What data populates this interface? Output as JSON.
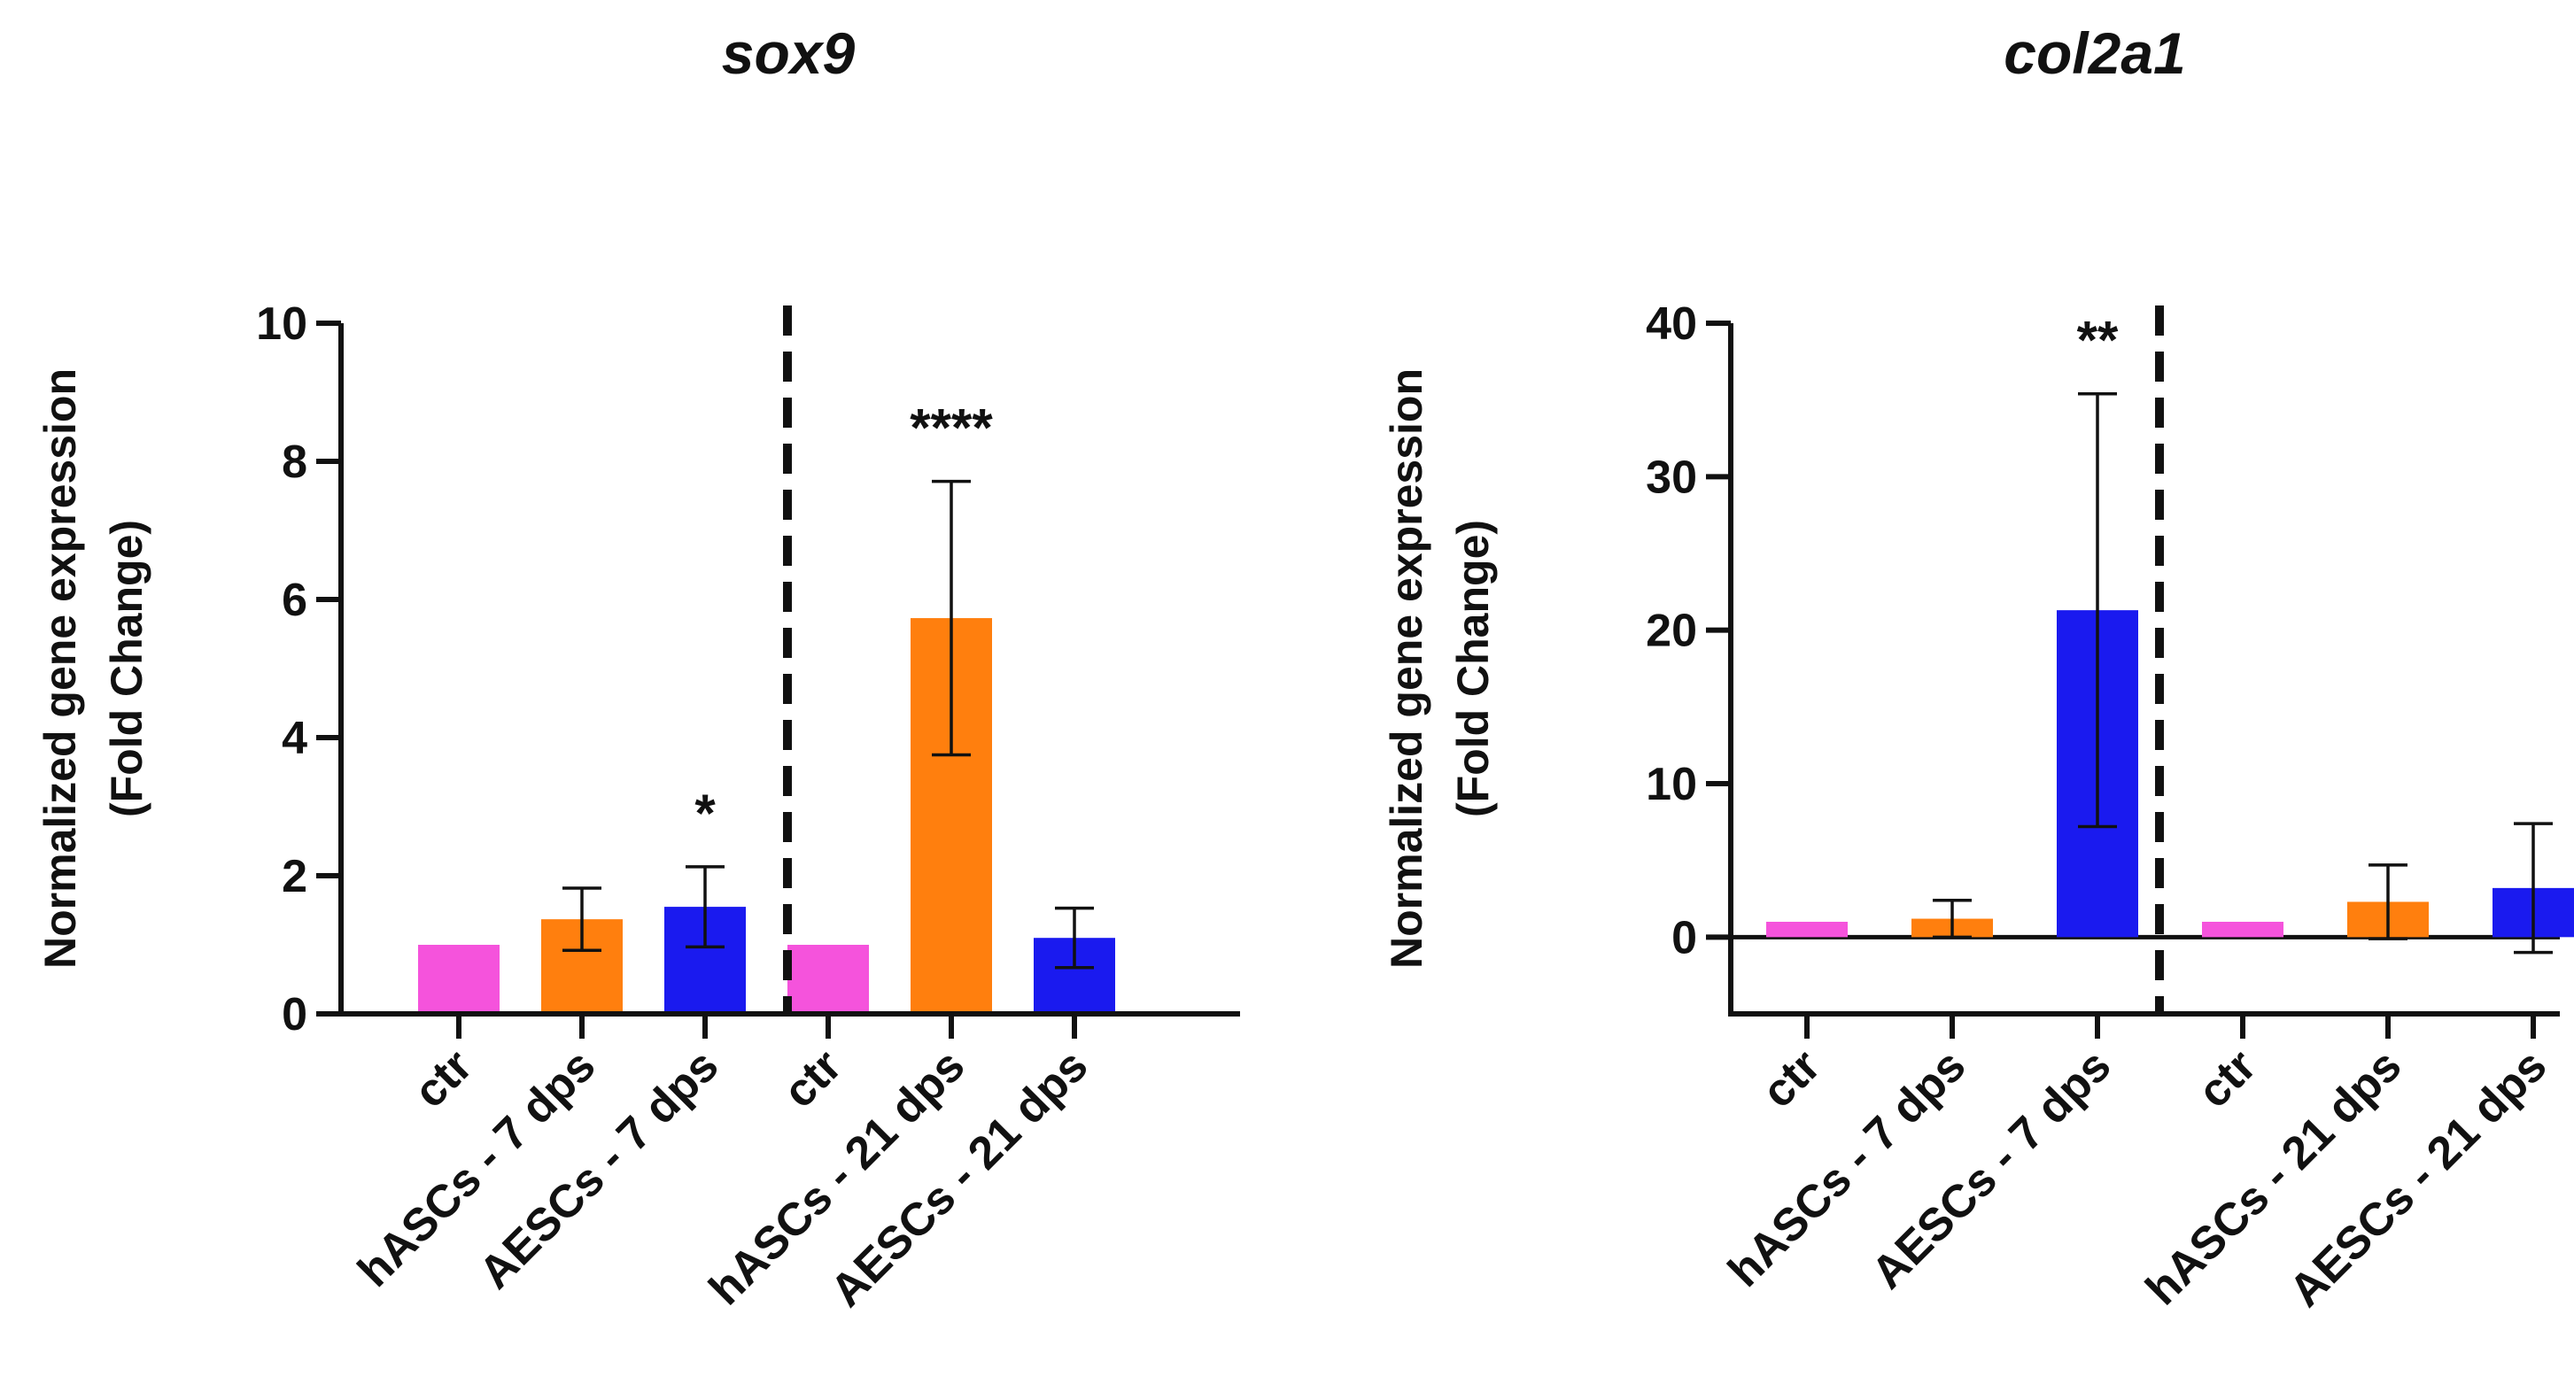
{
  "chart_data": [
    {
      "type": "bar",
      "title": "sox9",
      "ylabel_line1": "Normalized gene expression",
      "ylabel_line2": "(Fold Change)",
      "xlabel": "",
      "ylim": [
        0,
        10
      ],
      "yticks": [
        0,
        2,
        4,
        6,
        8,
        10
      ],
      "categories": [
        "ctr",
        "hASCs - 7 dps",
        "AESCs - 7 dps",
        "ctr",
        "hASCs - 21 dps",
        "AESCs - 21 dps"
      ],
      "values": [
        1.0,
        1.37,
        1.55,
        1.0,
        5.73,
        1.1
      ],
      "errors": [
        0,
        0.45,
        0.58,
        0,
        1.98,
        0.43
      ],
      "colors": [
        "#f553dc",
        "#ff7f0e",
        "#1a1aef",
        "#f553dc",
        "#ff7f0e",
        "#1a1aef"
      ],
      "significance": [
        "",
        "",
        "*",
        "",
        "****",
        ""
      ],
      "divider_after_index": 2
    },
    {
      "type": "bar",
      "title": "col2a1",
      "ylabel_line1": "Normalized gene expression",
      "ylabel_line2": "(Fold Change)",
      "xlabel": "",
      "ylim": [
        -5,
        40
      ],
      "yticks": [
        0,
        10,
        20,
        30,
        40
      ],
      "categories": [
        "ctr",
        "hASCs - 7 dps",
        "AESCs - 7 dps",
        "ctr",
        "hASCs - 21 dps",
        "AESCs - 21 dps"
      ],
      "values": [
        1.0,
        1.2,
        21.3,
        1.0,
        2.3,
        3.2
      ],
      "errors": [
        0,
        1.2,
        14.1,
        0,
        2.4,
        4.2
      ],
      "colors": [
        "#f553dc",
        "#ff7f0e",
        "#1a1aef",
        "#f553dc",
        "#ff7f0e",
        "#1a1aef"
      ],
      "significance": [
        "",
        "",
        "**",
        "",
        "",
        ""
      ],
      "divider_after_index": 2
    }
  ]
}
